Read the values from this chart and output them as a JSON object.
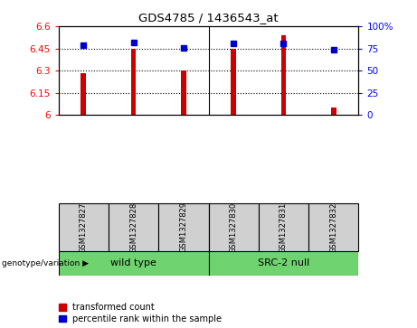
{
  "title": "GDS4785 / 1436543_at",
  "samples": [
    "GSM1327827",
    "GSM1327828",
    "GSM1327829",
    "GSM1327830",
    "GSM1327831",
    "GSM1327832"
  ],
  "red_values": [
    6.28,
    6.45,
    6.3,
    6.45,
    6.54,
    6.05
  ],
  "blue_values": [
    79,
    82,
    76,
    81,
    81,
    74
  ],
  "ylim_left": [
    6.0,
    6.6
  ],
  "ylim_right": [
    0,
    100
  ],
  "yticks_left": [
    6.0,
    6.15,
    6.3,
    6.45,
    6.6
  ],
  "yticks_right": [
    0,
    25,
    50,
    75,
    100
  ],
  "ytick_labels_left": [
    "6",
    "6.15",
    "6.3",
    "6.45",
    "6.6"
  ],
  "ytick_labels_right": [
    "0",
    "25",
    "50",
    "75",
    "100%"
  ],
  "hlines": [
    6.15,
    6.3,
    6.45
  ],
  "group1_label": "wild type",
  "group2_label": "SRC-2 null",
  "group_header": "genotype/variation",
  "group1_color": "#6fd46f",
  "group2_color": "#6fd46f",
  "bar_color": "#cc0000",
  "dot_color": "#0000cc",
  "sample_bg_color": "#d0d0d0",
  "legend_red": "transformed count",
  "legend_blue": "percentile rank within the sample",
  "bar_width": 0.1,
  "dot_size": 4
}
